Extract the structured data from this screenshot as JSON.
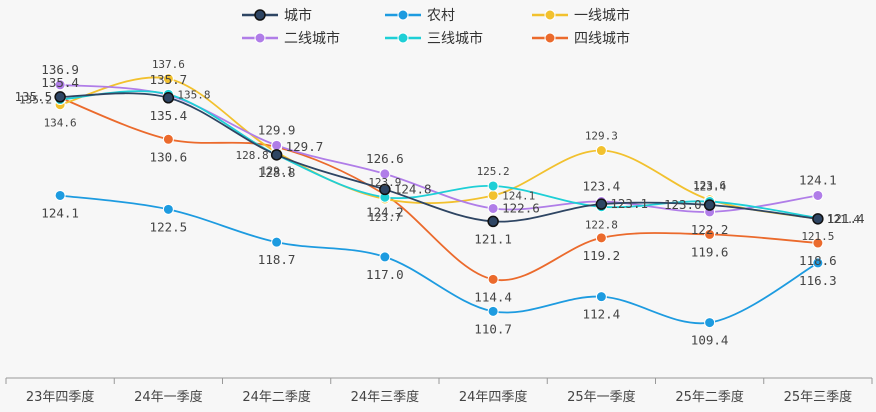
{
  "chart_data": {
    "type": "line",
    "smooth": true,
    "categories": [
      "23年四季度",
      "24年一季度",
      "24年二季度",
      "24年三季度",
      "24年四季度",
      "25年一季度",
      "25年二季度",
      "25年三季度"
    ],
    "ylim": [
      106,
      140
    ],
    "grid": false,
    "legend_position": "top",
    "series": [
      {
        "name": "城市",
        "color": "#2e4563",
        "values": [
          135.5,
          135.4,
          128.8,
          124.8,
          121.1,
          123.1,
          123.0,
          121.4
        ]
      },
      {
        "name": "农村",
        "color": "#1d9be0",
        "values": [
          124.1,
          122.5,
          118.7,
          117.0,
          110.7,
          112.4,
          109.4,
          116.3
        ]
      },
      {
        "name": "一线城市",
        "color": "#f2c12e",
        "values": [
          134.6,
          137.6,
          129.1,
          123.7,
          124.1,
          129.3,
          123.6,
          121.4
        ]
      },
      {
        "name": "二线城市",
        "color": "#b07de8",
        "values": [
          136.9,
          135.7,
          129.9,
          126.6,
          122.6,
          123.4,
          122.2,
          124.1
        ]
      },
      {
        "name": "三线城市",
        "color": "#1ecfd6",
        "values": [
          135.2,
          135.8,
          128.8,
          123.9,
          125.2,
          122.8,
          123.4,
          121.5
        ]
      },
      {
        "name": "四线城市",
        "color": "#eb6a2c",
        "values": [
          135.4,
          130.6,
          129.7,
          124.2,
          114.4,
          119.2,
          119.6,
          118.6
        ]
      }
    ]
  }
}
